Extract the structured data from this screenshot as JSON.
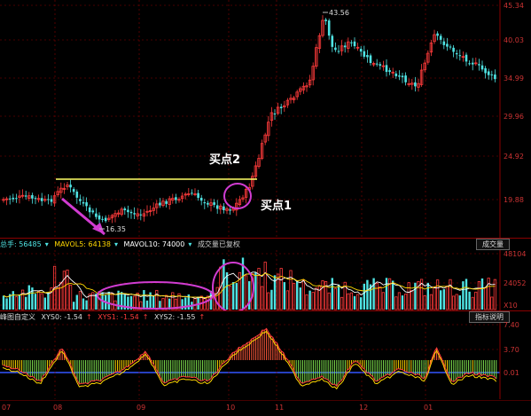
{
  "price_panel": {
    "right_axis_labels": [
      "45.34",
      "40.03",
      "34.99",
      "29.96",
      "24.92",
      "19.88"
    ],
    "high_marker": "43.56",
    "low_marker": "16.35",
    "annotation_buy2": "买点2",
    "annotation_buy1": "买点1"
  },
  "volume_panel": {
    "header": {
      "total_label": "总手: 56485",
      "mavol5_label": "MAVOL5: 64138",
      "mavol10_label": "MAVOL10: 74000",
      "note": "成交量已复权"
    },
    "tab_label": "成交量",
    "right_axis_labels": [
      "48104",
      "24052",
      "X10"
    ]
  },
  "osc_panel": {
    "header": {
      "name": "峰图自定义",
      "xys0": "XYS0: -1.54",
      "xys1": "XYS1: -1.54",
      "xys2": "XYS2: -1.55"
    },
    "tab_label": "指标说明",
    "right_axis_labels": [
      "7.40",
      "3.70",
      "0.01"
    ]
  },
  "date_axis": [
    "07",
    "08",
    "09",
    "10",
    "11",
    "12",
    "01"
  ],
  "colors": {
    "up": "#ff3b3b",
    "down": "#4fe3e3",
    "highlight_line": "#ffff66",
    "circle": "#d13cd1",
    "grid": "#8b0000",
    "axis_text": "#cc3333"
  }
}
